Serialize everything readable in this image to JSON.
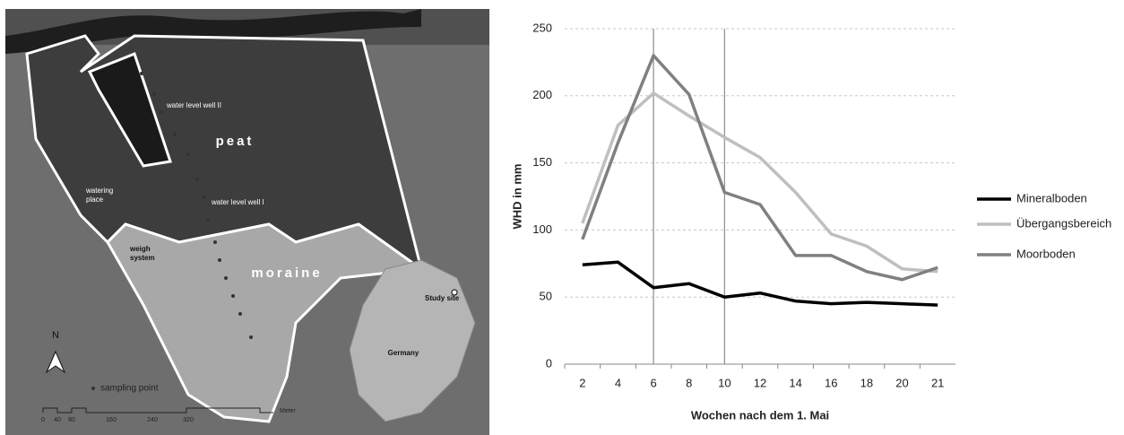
{
  "map": {
    "labels": {
      "peat": "peat",
      "moraine": "moraine",
      "well2": "water level well II",
      "well1": "water level well I",
      "watering": [
        "watering",
        "place"
      ],
      "weigh": [
        "weigh",
        "system"
      ],
      "study": "Study site",
      "germany": "Germany",
      "sampling": "sampling point",
      "north": "N",
      "scale": [
        "0",
        "40",
        "80",
        "160",
        "240",
        "320"
      ],
      "unit": "Meter"
    }
  },
  "chart_data": {
    "type": "line",
    "xlabel": "Wochen nach dem 1. Mai",
    "ylabel": "WHD in mm",
    "categories": [
      "2",
      "4",
      "6",
      "8",
      "10",
      "12",
      "14",
      "16",
      "18",
      "20",
      "21"
    ],
    "series": [
      {
        "name": "Mineralboden",
        "color": "#000000",
        "values": [
          74,
          76,
          57,
          60,
          50,
          53,
          47,
          45,
          46,
          45,
          44
        ]
      },
      {
        "name": "Übergangsbereich",
        "color": "#bfbfbf",
        "values": [
          105,
          178,
          202,
          185,
          169,
          154,
          128,
          97,
          88,
          71,
          69
        ]
      },
      {
        "name": "Moorboden",
        "color": "#808080",
        "values": [
          93,
          165,
          230,
          201,
          128,
          119,
          81,
          81,
          69,
          63,
          72
        ]
      }
    ],
    "vlines": [
      "6",
      "10"
    ],
    "ylim": [
      0,
      250
    ],
    "yticks": [
      0,
      50,
      100,
      150,
      200,
      250
    ],
    "grid": true,
    "legend": "right"
  }
}
